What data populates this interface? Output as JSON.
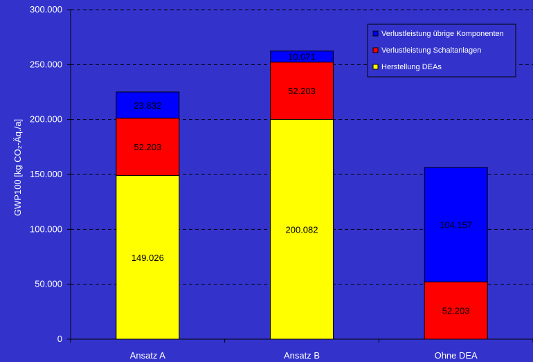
{
  "chart_data": {
    "type": "bar",
    "stacked": true,
    "categories": [
      "Ansatz A",
      "Ansatz B",
      "Ohne DEA"
    ],
    "series": [
      {
        "name": "Herstellung DEAs",
        "values": [
          149026,
          200082,
          0
        ],
        "labels": [
          "149.026",
          "200.082",
          ""
        ],
        "color": "#ffff00"
      },
      {
        "name": "Verlustleistung Schaltanlagen",
        "values": [
          52203,
          52203,
          52203
        ],
        "labels": [
          "52.203",
          "52.203",
          "52.203"
        ],
        "color": "#ff0000"
      },
      {
        "name": "Verlustleistung übrige Komponenten",
        "values": [
          23832,
          10071,
          104157
        ],
        "labels": [
          "23.832",
          "10.071",
          "104.157"
        ],
        "color": "#0000ff"
      }
    ],
    "ylabel": "GWP100 [kg CO₂-Äq./a]",
    "xlabel": "",
    "ylim": [
      0,
      300000
    ],
    "yticks": [
      0,
      50000,
      100000,
      150000,
      200000,
      250000,
      300000
    ],
    "ytick_labels": [
      "0",
      "50.000",
      "100.000",
      "150.000",
      "200.000",
      "250.000",
      "300.000"
    ],
    "grid": "horizontal dashed",
    "legend_position": "top-right",
    "legend_order": [
      "Verlustleistung übrige Komponenten",
      "Verlustleistung Schaltanlagen",
      "Herstellung DEAs"
    ],
    "colors": {
      "background": "#3333cc",
      "axis": "#000000",
      "text": "#ffffff"
    }
  }
}
